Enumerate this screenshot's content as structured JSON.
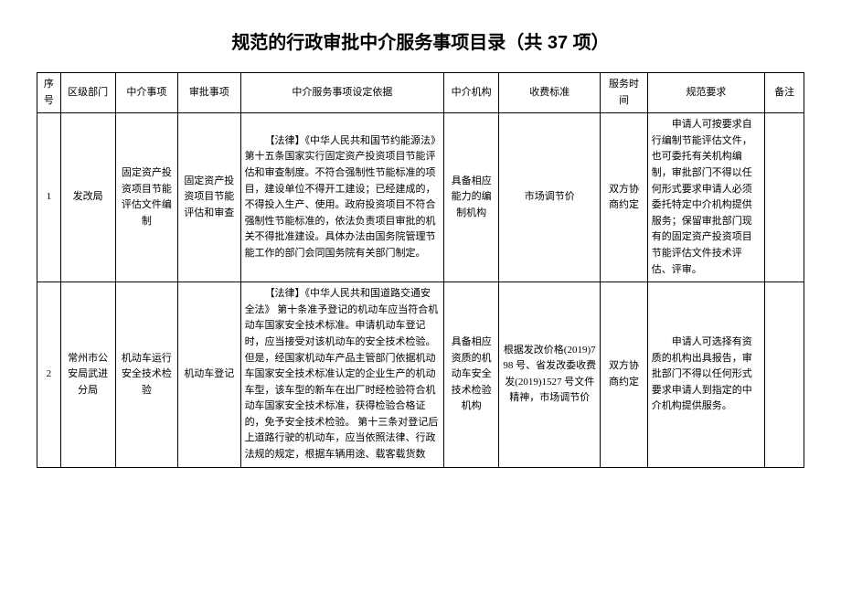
{
  "title": "规范的行政审批中介服务事项目录（共 37 项）",
  "columns": [
    "序号",
    "区级部门",
    "中介事项",
    "审批事项",
    "中介服务事项设定依据",
    "中介机构",
    "收费标准",
    "服务时间",
    "规范要求",
    "备注"
  ],
  "rows": [
    {
      "seq": "1",
      "dept": "发改局",
      "intermediary_item": "固定资产投资项目节能评估文件编制",
      "approval_item": "固定资产投资项目节能评估和审查",
      "basis": "【法律】《中华人民共和国节约能源法》第十五条国家实行固定资产投资项目节能评估和审查制度。不符合强制性节能标准的项目，建设单位不得开工建设；已经建成的，不得投入生产、使用。政府投资项目不符合强制性节能标准的，依法负责项目审批的机关不得批准建设。具体办法由国务院管理节能工作的部门会同国务院有关部门制定。",
      "org": "具备相应能力的编制机构",
      "fee": "市场调节价",
      "time": "双方协商约定",
      "requirement": "申请人可按要求自行编制节能评估文件，也可委托有关机构编制，审批部门不得以任何形式要求申请人必须委托特定中介机构提供服务；保留审批部门现有的固定资产投资项目节能评估文件技术评估、评审。",
      "note": ""
    },
    {
      "seq": "2",
      "dept": "常州市公安局武进分局",
      "intermediary_item": "机动车运行安全技术检验",
      "approval_item": "机动车登记",
      "basis": "【法律】《中华人民共和国道路交通安全法》\n第十条准予登记的机动车应当符合机动车国家安全技术标准。申请机动车登记时，应当接受对该机动车的安全技术检验。但是，经国家机动车产品主管部门依据机动车国家安全技术标准认定的企业生产的机动车型，该车型的新车在出厂时经检验符合机动车国家安全技术标准，获得检验合格证的，免予安全技术检验。\n第十三条对登记后上道路行驶的机动车，应当依照法律、行政法规的规定，根据车辆用途、载客载货数",
      "org": "具备相应资质的机动车安全技术检验机构",
      "fee": "根据发改价格(2019)798 号、省发改委收费发(2019)1527 号文件精神，市场调节价",
      "time": "双方协商约定",
      "requirement": "申请人可选择有资质的机构出具报告，审批部门不得以任何形式要求申请人到指定的中介机构提供服务。",
      "note": ""
    }
  ]
}
